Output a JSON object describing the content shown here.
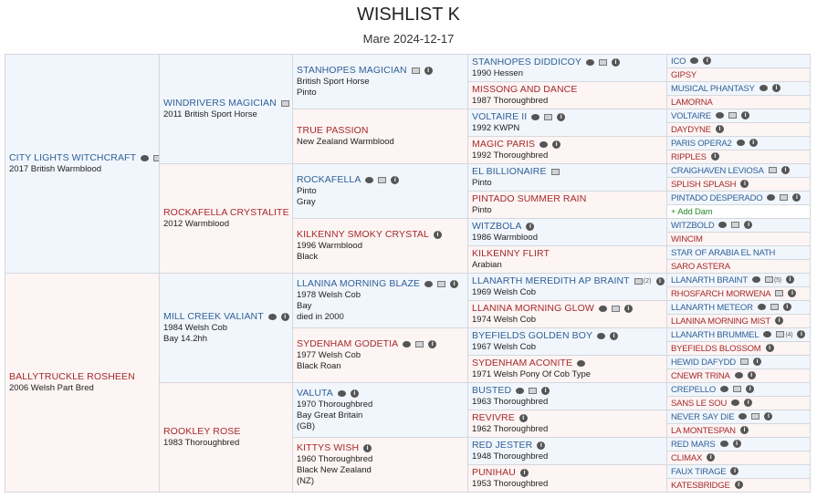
{
  "header": {
    "title": "WISHLIST K",
    "subtitle": "Mare 2024-12-17"
  },
  "colors": {
    "sire_text": "#2f5f96",
    "dam_text": "#a52a2a",
    "sire_bg": "#f1f6fc",
    "dam_bg": "#fdf4f4",
    "add_text": "#2a8a2a"
  },
  "gen1": [
    {
      "name": "CITY LIGHTS WITCHCRAFT",
      "lines": [
        "2017 British Warmblood"
      ],
      "icons": [
        "comment",
        "image"
      ]
    },
    {
      "name": "BALLYTRUCKLE ROSHEEN",
      "lines": [
        "2006 Welsh Part Bred"
      ],
      "icons": []
    }
  ],
  "gen2": [
    {
      "name": "WINDRIVERS MAGICIAN",
      "lines": [
        "2011 British Sport Horse"
      ],
      "icons": [
        "image"
      ]
    },
    {
      "name": "ROCKAFELLA CRYSTALITE",
      "lines": [
        "2012 Warmblood"
      ],
      "icons": [
        "image"
      ]
    },
    {
      "name": "MILL CREEK VALIANT",
      "lines": [
        "1984 Welsh Cob",
        "Bay 14.2hh"
      ],
      "icons": [
        "comment",
        "info"
      ]
    },
    {
      "name": "ROOKLEY ROSE",
      "lines": [
        "1983 Thoroughbred"
      ],
      "icons": []
    }
  ],
  "gen3": [
    {
      "name": "STANHOPES MAGICIAN",
      "lines": [
        "British Sport Horse",
        "Pinto"
      ],
      "icons": [
        "image",
        "info"
      ]
    },
    {
      "name": "TRUE PASSION",
      "lines": [
        "New Zealand Warmblood"
      ],
      "icons": []
    },
    {
      "name": "ROCKAFELLA",
      "lines": [
        "Pinto",
        "Gray"
      ],
      "icons": [
        "comment",
        "image",
        "info"
      ]
    },
    {
      "name": "KILKENNY SMOKY CRYSTAL",
      "lines": [
        "1996 Warmblood",
        "Black"
      ],
      "icons": [
        "info"
      ]
    },
    {
      "name": "LLANINA MORNING BLAZE",
      "lines": [
        "1978 Welsh Cob",
        "Bay",
        "died in 2000"
      ],
      "icons": [
        "comment",
        "image",
        "info"
      ]
    },
    {
      "name": "SYDENHAM GODETIA",
      "lines": [
        "1977 Welsh Cob",
        "Black Roan"
      ],
      "icons": [
        "comment",
        "image",
        "info"
      ]
    },
    {
      "name": "VALUTA",
      "lines": [
        "1970 Thoroughbred",
        "Bay Great Britain",
        "(GB)"
      ],
      "icons": [
        "comment",
        "info"
      ]
    },
    {
      "name": "KITTYS WISH",
      "lines": [
        "1960 Thoroughbred",
        "Black New Zealand",
        "(NZ)"
      ],
      "icons": [
        "info"
      ]
    }
  ],
  "gen4": [
    {
      "name": "STANHOPES DIDDICOY",
      "lines": [
        "1990 Hessen"
      ],
      "icons": [
        "comment",
        "image",
        "info"
      ]
    },
    {
      "name": "MISSONG AND DANCE",
      "lines": [
        "1987 Thoroughbred"
      ],
      "icons": []
    },
    {
      "name": "VOLTAIRE II",
      "lines": [
        "1992 KWPN"
      ],
      "icons": [
        "comment",
        "image",
        "info"
      ]
    },
    {
      "name": "MAGIC PARIS",
      "lines": [
        "1992 Thoroughbred"
      ],
      "icons": [
        "comment",
        "info"
      ]
    },
    {
      "name": "EL BILLIONAIRE",
      "lines": [
        "Pinto"
      ],
      "icons": [
        "image"
      ]
    },
    {
      "name": "PINTADO SUMMER RAIN",
      "lines": [
        "Pinto"
      ],
      "icons": []
    },
    {
      "name": "WITZBOLA",
      "lines": [
        "1986 Warmblood"
      ],
      "icons": [
        "info"
      ]
    },
    {
      "name": "KILKENNY FLIRT",
      "lines": [
        "Arabian"
      ],
      "icons": []
    },
    {
      "name": "LLANARTH MEREDITH AP BRAINT",
      "lines": [
        "1969 Welsh Cob"
      ],
      "icons": [
        "image",
        "info"
      ],
      "image_count": "(2)"
    },
    {
      "name": "LLANINA MORNING GLOW",
      "lines": [
        "1974 Welsh Cob"
      ],
      "icons": [
        "comment",
        "image",
        "info"
      ]
    },
    {
      "name": "BYEFIELDS GOLDEN BOY",
      "lines": [
        "1967 Welsh Cob"
      ],
      "icons": [
        "comment",
        "info"
      ]
    },
    {
      "name": "SYDENHAM ACONITE",
      "lines": [
        "1971 Welsh Pony Of Cob Type"
      ],
      "icons": [
        "comment"
      ]
    },
    {
      "name": "BUSTED",
      "lines": [
        "1963 Thoroughbred"
      ],
      "icons": [
        "comment",
        "image",
        "info"
      ]
    },
    {
      "name": "REVIVRE",
      "lines": [
        "1962 Thoroughbred"
      ],
      "icons": [
        "info"
      ]
    },
    {
      "name": "RED JESTER",
      "lines": [
        "1948 Thoroughbred"
      ],
      "icons": [
        "info"
      ]
    },
    {
      "name": "PUNIHAU",
      "lines": [
        "1953 Thoroughbred"
      ],
      "icons": [
        "info"
      ]
    }
  ],
  "gen5": [
    {
      "name": "ICO",
      "icons": [
        "comment",
        "info"
      ]
    },
    {
      "name": "GIPSY",
      "icons": []
    },
    {
      "name": "MUSICAL PHANTASY",
      "icons": [
        "comment",
        "info"
      ]
    },
    {
      "name": "LAMORNA",
      "icons": []
    },
    {
      "name": "VOLTAIRE",
      "icons": [
        "comment",
        "image",
        "info"
      ]
    },
    {
      "name": "DAYDYNE",
      "icons": [
        "info"
      ]
    },
    {
      "name": "PARIS OPERA2",
      "icons": [
        "comment",
        "info"
      ]
    },
    {
      "name": "RIPPLES",
      "icons": [
        "info"
      ]
    },
    {
      "name": "CRAIGHAVEN LEVIOSA",
      "icons": [
        "image",
        "info"
      ]
    },
    {
      "name": "SPLISH SPLASH",
      "icons": [
        "info"
      ]
    },
    {
      "name": "PINTADO DESPERADO",
      "icons": [
        "comment",
        "image",
        "info"
      ]
    },
    {
      "name": "+ Add Dam",
      "icons": [],
      "add": true
    },
    {
      "name": "WITZBOLD",
      "icons": [
        "comment",
        "image",
        "info"
      ]
    },
    {
      "name": "WINCIM",
      "icons": []
    },
    {
      "name": "STAR OF ARABIA EL NATH",
      "icons": []
    },
    {
      "name": "SARO ASTERA",
      "icons": []
    },
    {
      "name": "LLANARTH BRAINT",
      "icons": [
        "comment",
        "image",
        "info"
      ],
      "image_count": "(5)"
    },
    {
      "name": "RHOSFARCH MORWENA",
      "icons": [
        "image",
        "info"
      ]
    },
    {
      "name": "LLANARTH METEOR",
      "icons": [
        "comment",
        "image",
        "info"
      ]
    },
    {
      "name": "LLANINA MORNING MIST",
      "icons": [
        "info"
      ]
    },
    {
      "name": "LLANARTH BRUMMEL",
      "icons": [
        "comment",
        "image",
        "info"
      ],
      "image_count": "(4)"
    },
    {
      "name": "BYEFIELDS BLOSSOM",
      "icons": [
        "info"
      ]
    },
    {
      "name": "HEWID DAFYDD",
      "icons": [
        "image",
        "info"
      ]
    },
    {
      "name": "CNEWR TRINA",
      "icons": [
        "comment",
        "info"
      ]
    },
    {
      "name": "CREPELLO",
      "icons": [
        "comment",
        "image",
        "info"
      ]
    },
    {
      "name": "SANS LE SOU",
      "icons": [
        "comment",
        "info"
      ]
    },
    {
      "name": "NEVER SAY DIE",
      "icons": [
        "comment",
        "image",
        "info"
      ]
    },
    {
      "name": "LA MONTESPAN",
      "icons": [
        "info"
      ]
    },
    {
      "name": "RED MARS",
      "icons": [
        "comment",
        "info"
      ]
    },
    {
      "name": "CLIMAX",
      "icons": [
        "info"
      ]
    },
    {
      "name": "FAUX TIRAGE",
      "icons": [
        "info"
      ]
    },
    {
      "name": "KATESBRIDGE",
      "icons": [
        "info"
      ]
    }
  ]
}
